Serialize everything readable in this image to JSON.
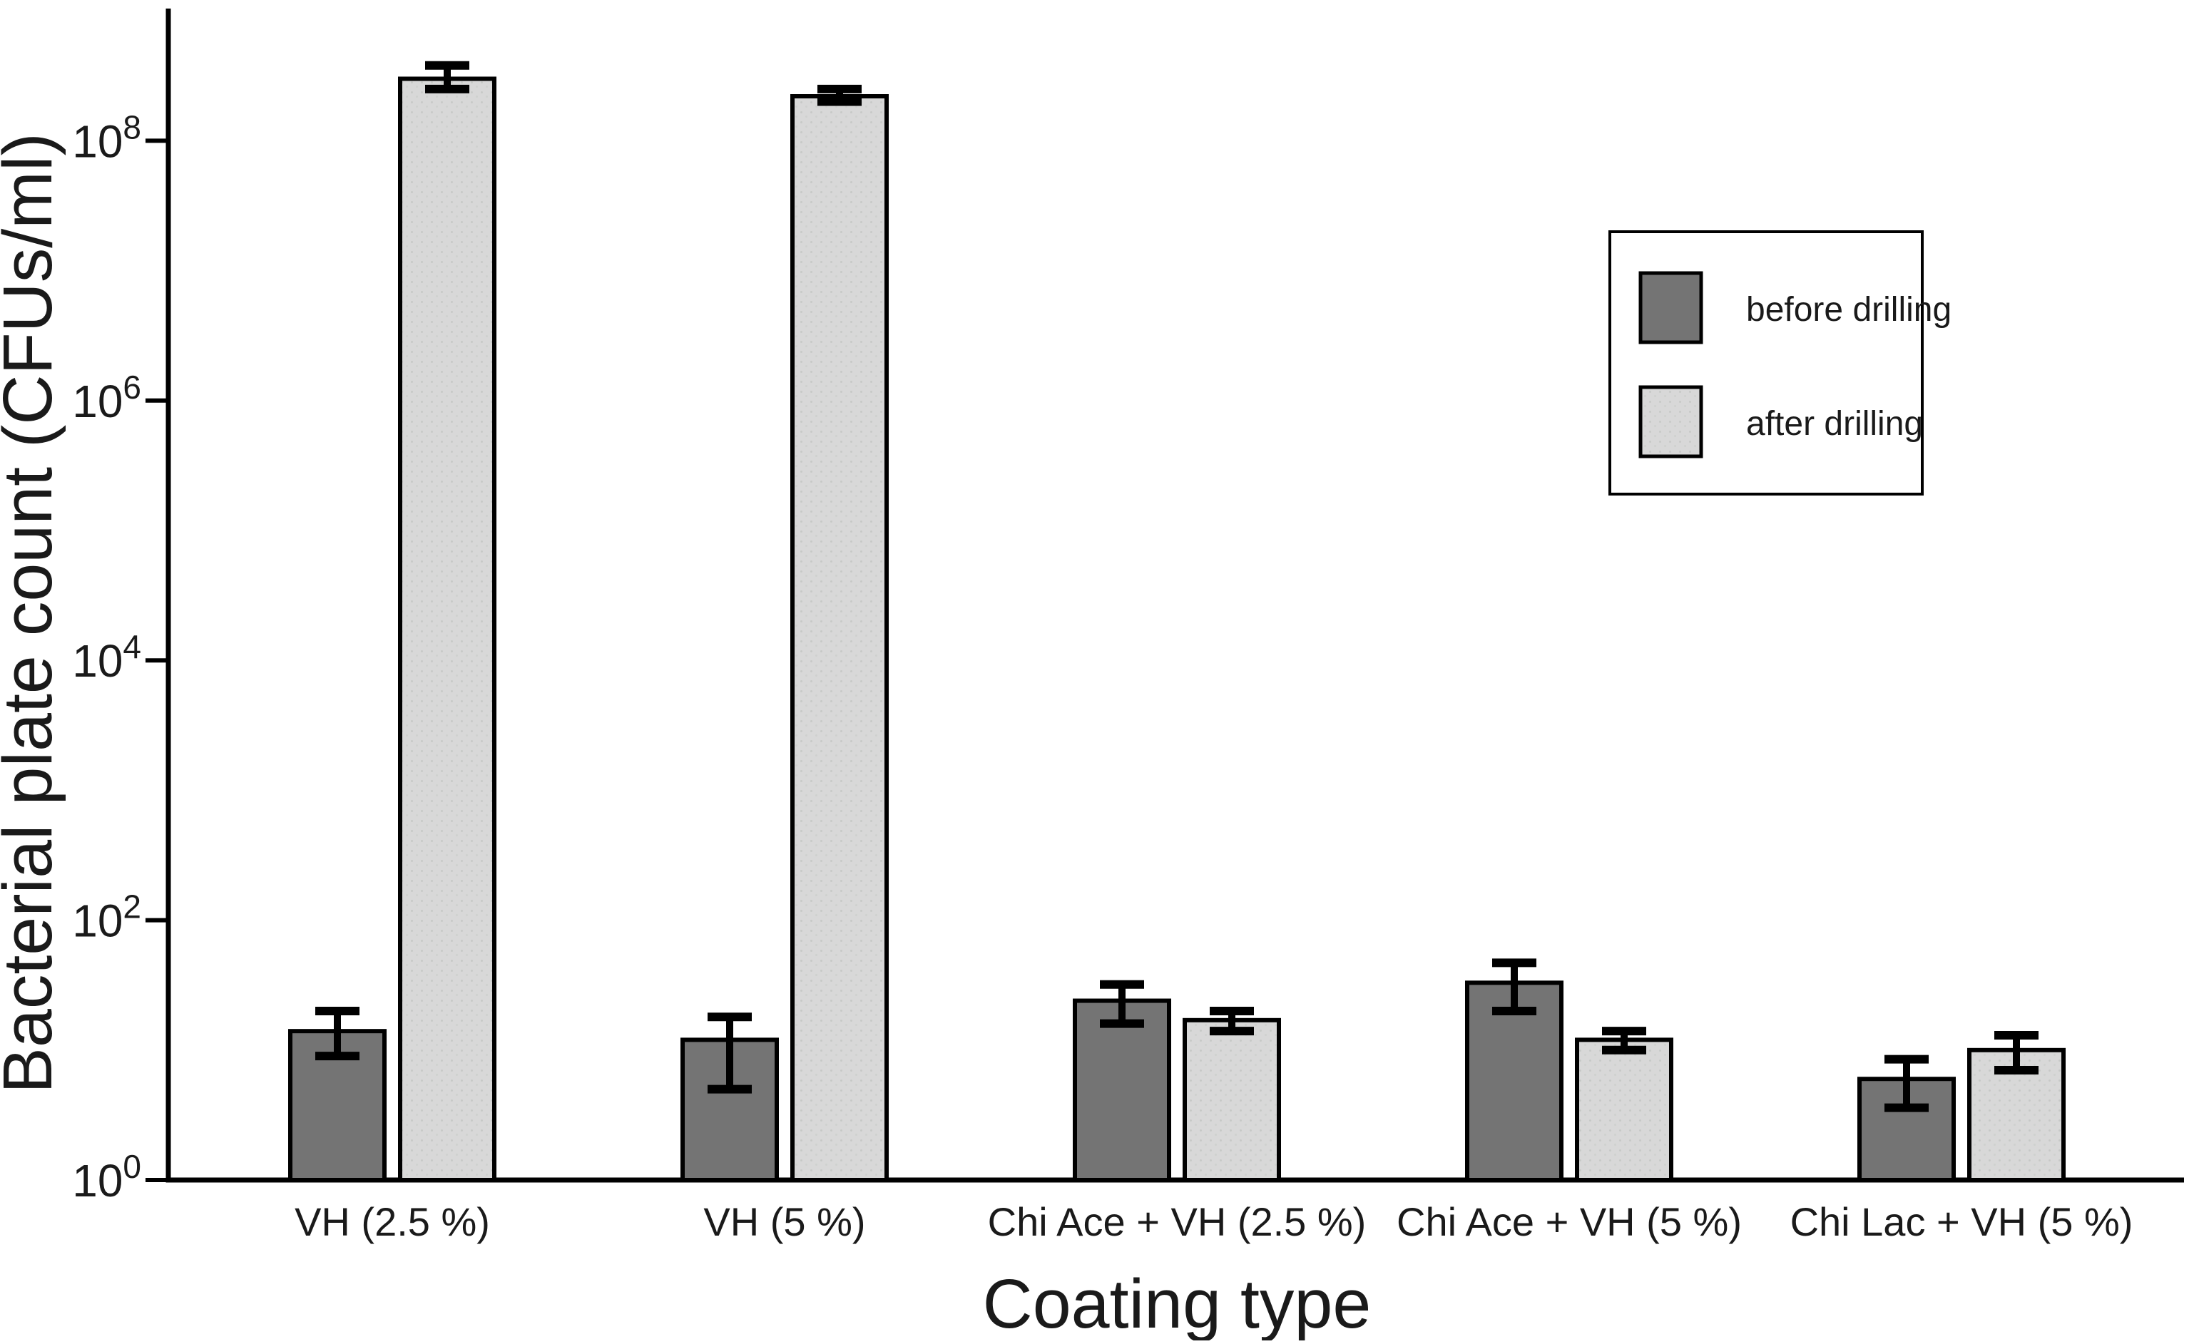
{
  "figure": {
    "background": "#ffffff",
    "foreground": "#1a1a1a"
  },
  "chart_data": {
    "type": "bar",
    "title": "",
    "xlabel": "Coating type",
    "ylabel": "Bacterial plate count (CFUs/ml)",
    "y_scale": "log10",
    "y_tick_exponents": [
      0,
      2,
      4,
      6,
      8
    ],
    "y_range_exponents": [
      0,
      9
    ],
    "grid": false,
    "categories": [
      "VH (2.5 %)",
      "VH (5 %)",
      "Chi Ace + VH (2.5 %)",
      "Chi Ace + VH (5 %)",
      "Chi Lac + VH (5 %)"
    ],
    "series": [
      {
        "name": "before drilling",
        "color": "#747474",
        "values": [
          14,
          12,
          24,
          33,
          6
        ],
        "error_low": [
          9,
          5,
          16,
          20,
          3.6
        ],
        "error_high": [
          20,
          18,
          32,
          47,
          8.5
        ]
      },
      {
        "name": "after drilling",
        "color": "#d8d8d8",
        "values": [
          300000000,
          220000000,
          17,
          12,
          10
        ],
        "error_low": [
          250000000,
          200000000,
          14,
          10,
          7
        ],
        "error_high": [
          380000000,
          250000000,
          20,
          14,
          13
        ]
      }
    ],
    "legend": {
      "position": "upper right",
      "border_color": "#000000",
      "background": "#ffffff"
    },
    "bar_outline_color": "#000000",
    "error_bar_color": "#000000",
    "axis_color": "#000000"
  }
}
